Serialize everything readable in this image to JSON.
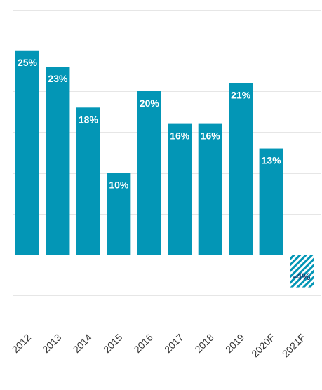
{
  "chart_data": {
    "type": "bar",
    "title": "",
    "xlabel": "",
    "ylabel": "",
    "categories": [
      "2012",
      "2013",
      "2014",
      "2015",
      "2016",
      "2017",
      "2018",
      "2019",
      "2020F",
      "2021F"
    ],
    "values": [
      25,
      23,
      18,
      10,
      20,
      16,
      16,
      21,
      13,
      -4
    ],
    "data_labels": [
      "25%",
      "23%",
      "18%",
      "10%",
      "20%",
      "16%",
      "16%",
      "21%",
      "13%",
      "-4%"
    ],
    "forecast_hatched": [
      false,
      false,
      false,
      false,
      false,
      false,
      false,
      false,
      false,
      true
    ],
    "ylim": [
      -10,
      30
    ],
    "grid": true,
    "legend": "none",
    "colors": {
      "bar": "#0396b6",
      "hatch_background": "#ffffff",
      "label_on_bar": "#ffffff",
      "label_negative": "#1a3a6b",
      "grid": "#e6e6e6"
    }
  }
}
